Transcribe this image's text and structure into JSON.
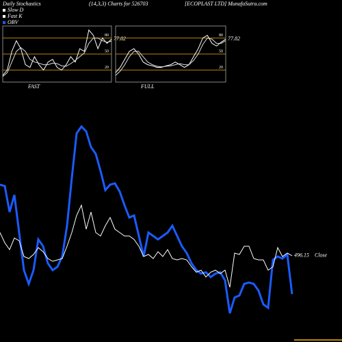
{
  "header": {
    "title": "Daily Stochastics",
    "subtitle": "(14,3,3) Charts for 526703",
    "source": "[ECOPLAST LTD] MunafaSutra.com"
  },
  "chart_data": [
    {
      "type": "line",
      "title": "FAST",
      "ylim": [
        0,
        100
      ],
      "yticks": [
        20,
        50,
        80
      ],
      "grid_color": "#b8860b",
      "series": [
        {
          "name": "Fast K",
          "color": "#ffffff",
          "values": [
            10,
            20,
            55,
            75,
            60,
            30,
            25,
            45,
            30,
            20,
            35,
            40,
            25,
            20,
            30,
            45,
            35,
            60,
            55,
            95,
            85,
            60,
            80,
            70,
            77.82
          ],
          "value_labels": [
            null,
            null,
            null,
            null,
            null,
            null,
            null,
            null,
            null,
            null,
            null,
            null,
            null,
            null,
            null,
            null,
            null,
            null,
            null,
            null,
            null,
            null,
            null,
            null,
            "77.82"
          ]
        },
        {
          "name": "Slow D",
          "color": "#dddddd",
          "values": [
            8,
            15,
            35,
            55,
            62,
            55,
            40,
            35,
            33,
            30,
            30,
            33,
            32,
            28,
            27,
            32,
            38,
            45,
            52,
            70,
            80,
            80,
            75,
            72,
            74
          ]
        }
      ]
    },
    {
      "type": "line",
      "title": "FULL",
      "ylim": [
        0,
        100
      ],
      "yticks": [
        20,
        50,
        80
      ],
      "grid_color": "#b8860b",
      "series": [
        {
          "color": "#ffffff",
          "values": [
            15,
            25,
            40,
            55,
            60,
            50,
            35,
            30,
            28,
            25,
            25,
            28,
            30,
            35,
            30,
            25,
            30,
            45,
            60,
            80,
            85,
            70,
            65,
            72,
            77.82
          ],
          "value_labels": [
            null,
            null,
            null,
            null,
            null,
            null,
            null,
            null,
            null,
            null,
            null,
            null,
            null,
            null,
            null,
            null,
            null,
            null,
            null,
            null,
            null,
            null,
            null,
            null,
            "77.82"
          ]
        },
        {
          "color": "#dddddd",
          "values": [
            10,
            18,
            30,
            45,
            55,
            55,
            45,
            35,
            30,
            27,
            26,
            27,
            28,
            30,
            32,
            30,
            30,
            38,
            50,
            68,
            80,
            78,
            70,
            70,
            75
          ]
        }
      ]
    },
    {
      "type": "line",
      "ylim": [
        0,
        300
      ],
      "y2lim": [
        400,
        700
      ],
      "series": [
        {
          "name": "OBV",
          "color": "#1a5cff",
          "values": [
            200,
            198,
            160,
            185,
            130,
            75,
            55,
            75,
            120,
            110,
            85,
            75,
            80,
            95,
            140,
            210,
            275,
            285,
            278,
            255,
            245,
            220,
            192,
            200,
            202,
            190,
            170,
            152,
            155,
            125,
            95,
            130,
            125,
            120,
            125,
            130,
            140,
            125,
            110,
            100,
            85,
            75,
            70,
            72,
            65,
            70,
            72,
            60,
            12,
            35,
            38,
            55,
            57,
            55,
            45,
            25,
            20,
            90,
            95,
            92,
            98,
            40
          ]
        },
        {
          "name": "Close",
          "axis": "y2",
          "color": "#ffffff",
          "values": [
            530,
            515,
            505,
            522,
            518,
            495,
            492,
            498,
            508,
            502,
            492,
            488,
            490,
            492,
            510,
            530,
            555,
            570,
            535,
            560,
            530,
            525,
            540,
            552,
            535,
            530,
            525,
            525,
            520,
            510,
            495,
            498,
            492,
            502,
            495,
            505,
            492,
            490,
            492,
            490,
            480,
            472,
            475,
            465,
            472,
            475,
            470,
            475,
            450,
            500,
            498,
            510,
            510,
            492,
            490,
            490,
            475,
            480,
            508,
            495,
            500,
            496.15
          ],
          "value_labels": [
            null,
            null,
            null,
            null,
            null,
            null,
            null,
            null,
            null,
            null,
            null,
            null,
            null,
            null,
            null,
            null,
            null,
            null,
            null,
            null,
            null,
            null,
            null,
            null,
            null,
            null,
            null,
            null,
            null,
            null,
            null,
            null,
            null,
            null,
            null,
            null,
            null,
            null,
            null,
            null,
            null,
            null,
            null,
            null,
            null,
            null,
            null,
            null,
            null,
            null,
            null,
            null,
            null,
            null,
            null,
            null,
            null,
            null,
            null,
            null,
            null,
            "496.15"
          ]
        }
      ]
    }
  ]
}
